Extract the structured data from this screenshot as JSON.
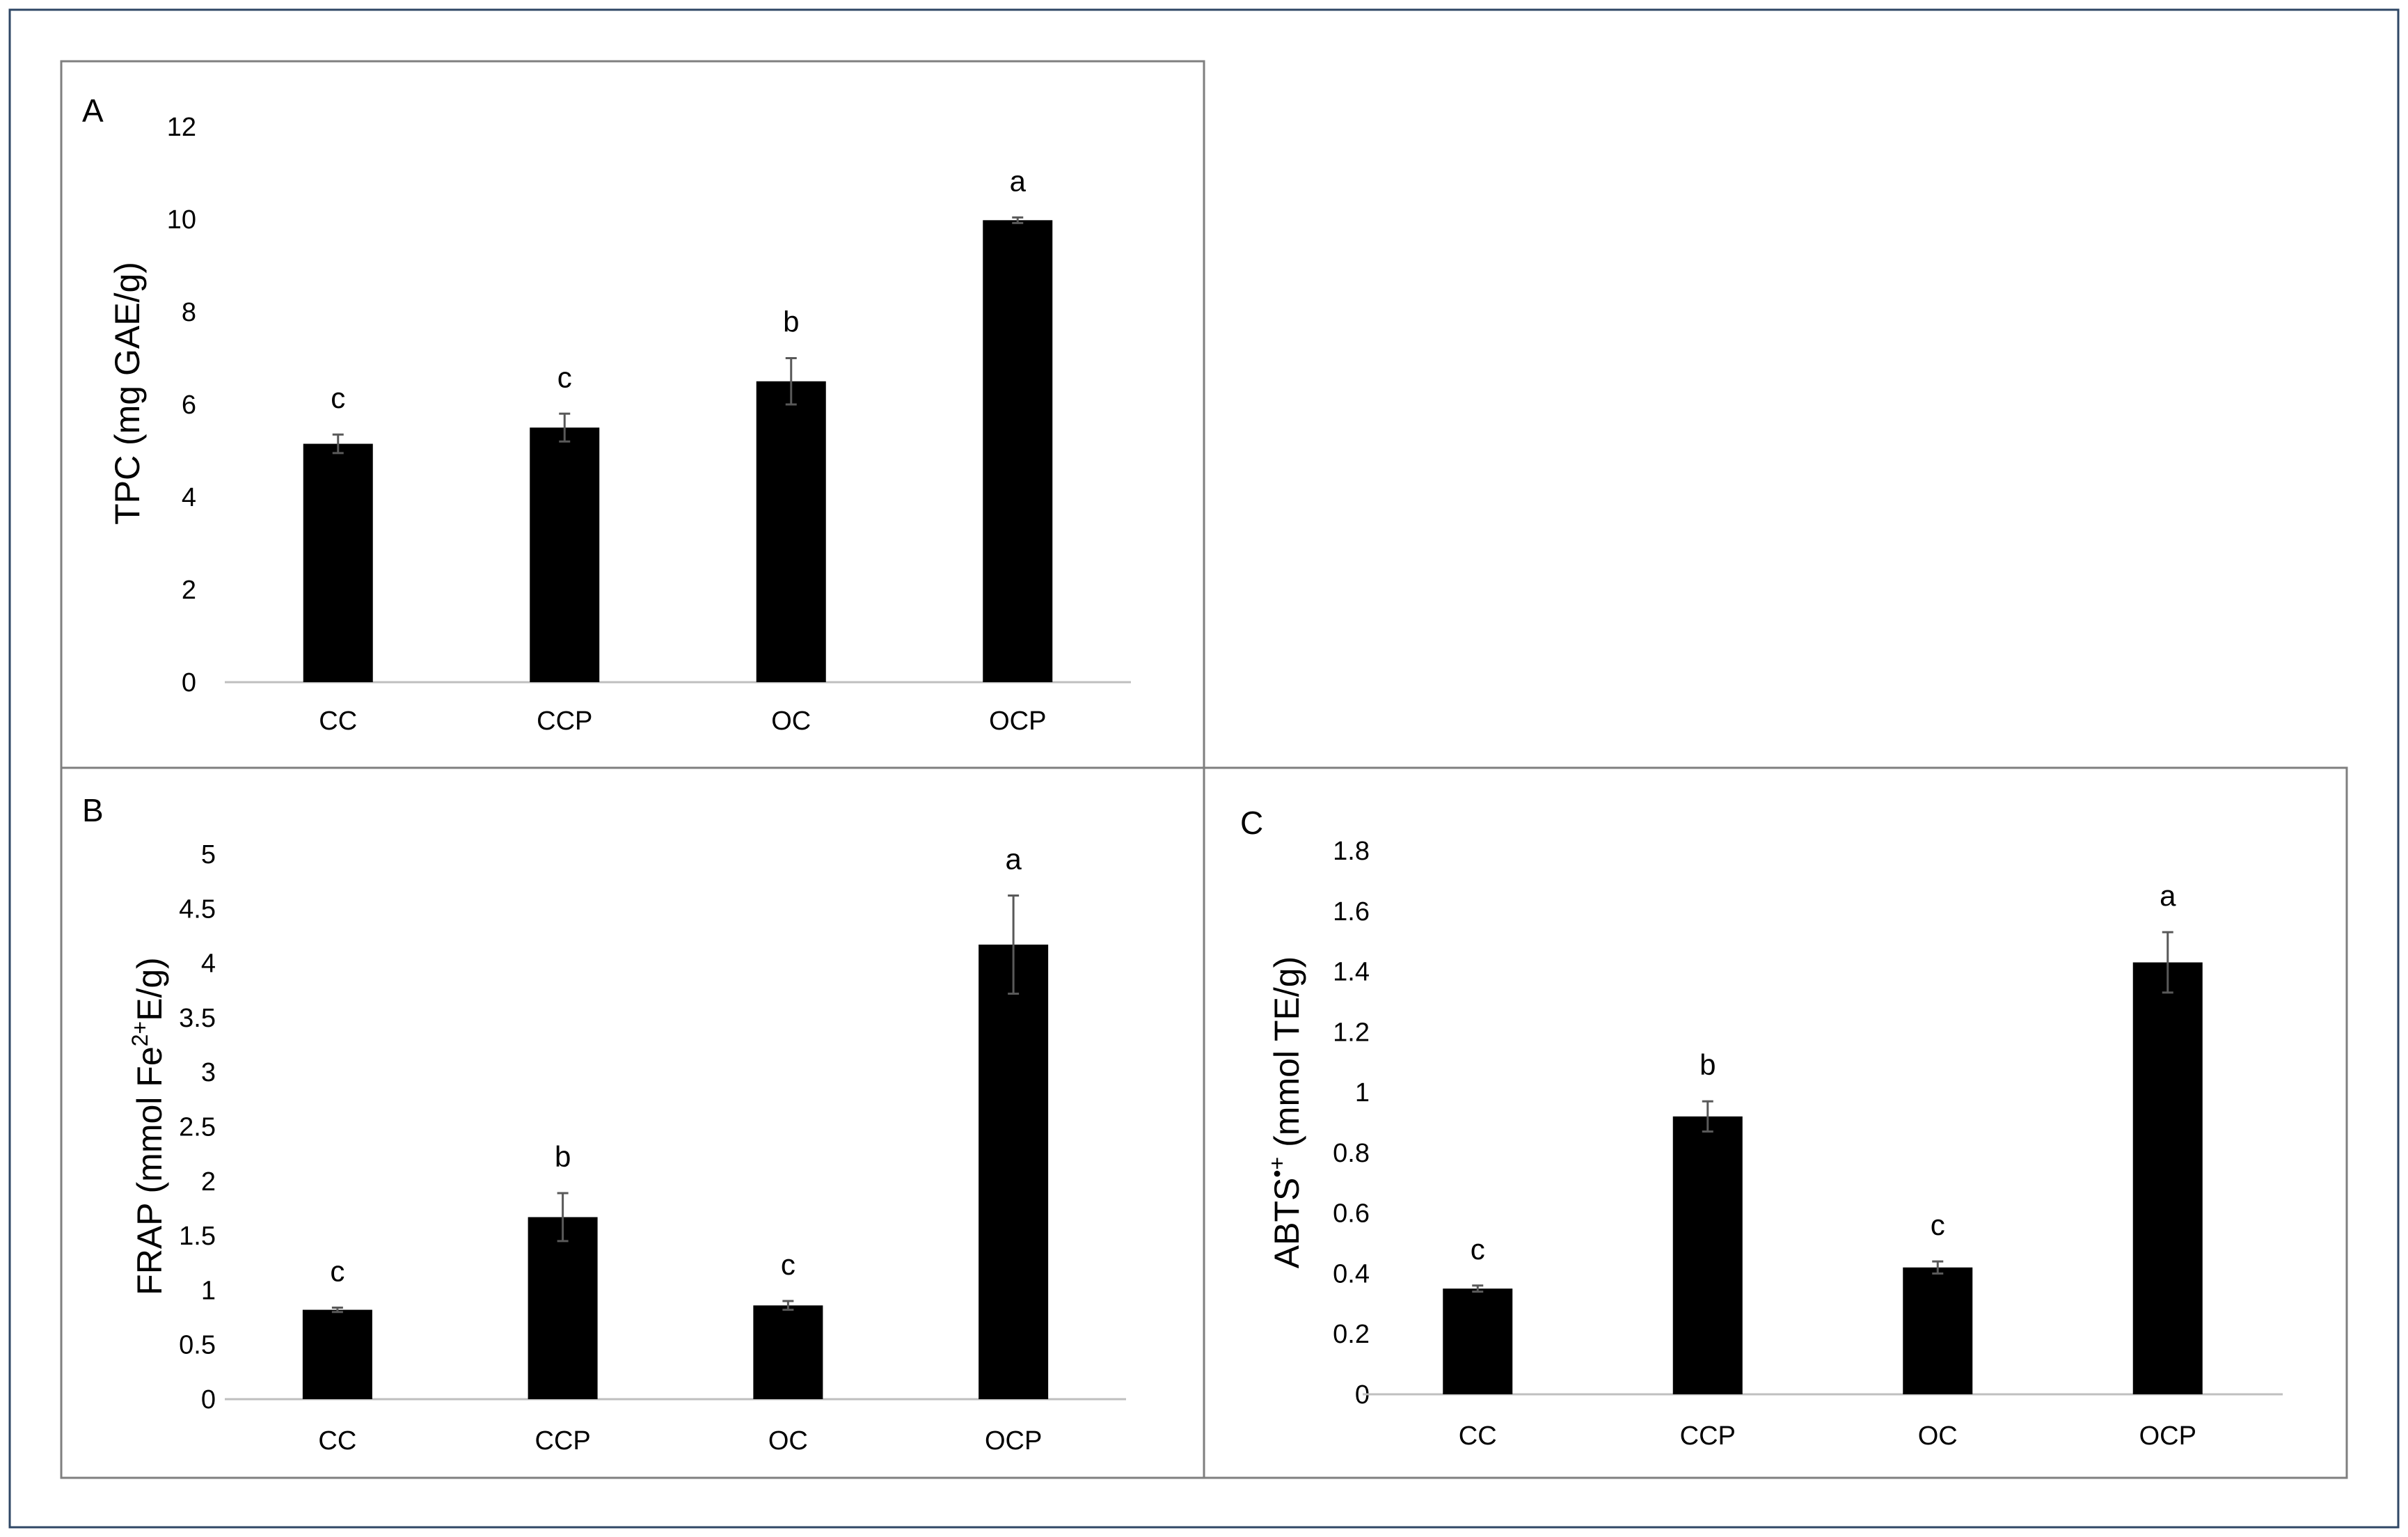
{
  "colors": {
    "outer_border": "#2f4766",
    "panel_border": "#7f7f7f",
    "bar": "#000000",
    "axis": "#bfbfbf",
    "error_bar": "#595959"
  },
  "chart_data": [
    {
      "id": "A",
      "type": "bar",
      "panel_label": "A",
      "ylabel": "TPC (mg GAE/g)",
      "categories": [
        "CC",
        "CCP",
        "OC",
        "OCP"
      ],
      "values": [
        5.15,
        5.5,
        6.5,
        9.98
      ],
      "errors": [
        0.2,
        0.3,
        0.5,
        0.06
      ],
      "significance": [
        "c",
        "c",
        "b",
        "a"
      ],
      "ylim": [
        0,
        12
      ],
      "yticks": [
        0,
        2,
        4,
        6,
        8,
        10,
        12
      ],
      "ytick_labels": [
        "0",
        "2",
        "4",
        "6",
        "8",
        "10",
        "12"
      ],
      "grid": false
    },
    {
      "id": "B",
      "type": "bar",
      "panel_label": "B",
      "ylabel_parts": [
        "FRAP (mmol Fe",
        "2+",
        "E/g)"
      ],
      "categories": [
        "CC",
        "CCP",
        "OC",
        "OCP"
      ],
      "values": [
        0.82,
        1.67,
        0.86,
        4.17
      ],
      "errors": [
        0.02,
        0.22,
        0.04,
        0.45
      ],
      "significance": [
        "c",
        "b",
        "c",
        "a"
      ],
      "ylim": [
        0,
        5
      ],
      "yticks": [
        0,
        0.5,
        1,
        1.5,
        2,
        2.5,
        3,
        3.5,
        4,
        4.5,
        5
      ],
      "ytick_labels": [
        "0",
        "0.5",
        "1",
        "1.5",
        "2",
        "2.5",
        "3",
        "3.5",
        "4",
        "4.5",
        "5"
      ],
      "grid": false
    },
    {
      "id": "C",
      "type": "bar",
      "panel_label": "C",
      "ylabel_parts": [
        "ABTS",
        "•+",
        " (mmol TE/g)"
      ],
      "categories": [
        "CC",
        "CCP",
        "OC",
        "OCP"
      ],
      "values": [
        0.35,
        0.92,
        0.42,
        1.43
      ],
      "errors": [
        0.01,
        0.05,
        0.02,
        0.1
      ],
      "significance": [
        "c",
        "b",
        "c",
        "a"
      ],
      "ylim": [
        0,
        1.8
      ],
      "yticks": [
        0,
        0.2,
        0.4,
        0.6,
        0.8,
        1,
        1.2,
        1.4,
        1.6,
        1.8
      ],
      "ytick_labels": [
        "0",
        "0.2",
        "0.4",
        "0.6",
        "0.8",
        "1",
        "1.2",
        "1.4",
        "1.6",
        "1.8"
      ],
      "grid": false
    }
  ]
}
